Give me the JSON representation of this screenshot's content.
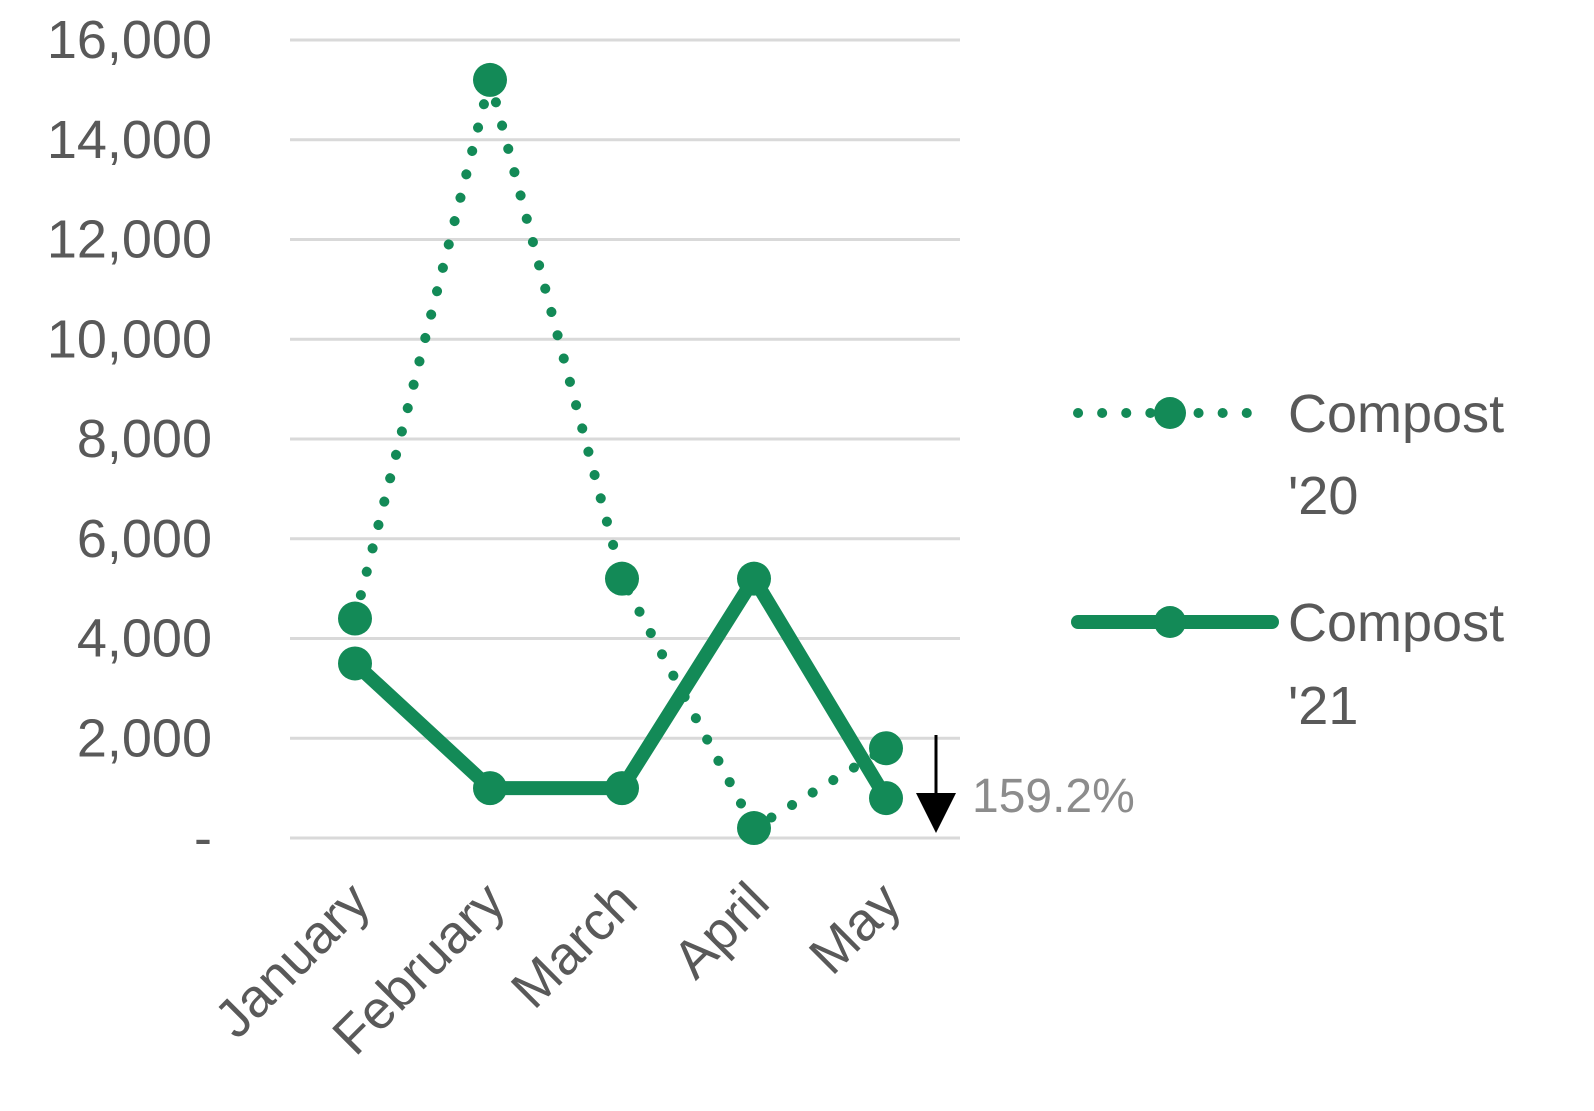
{
  "chart_data": {
    "type": "line",
    "categories": [
      "January",
      "February",
      "March",
      "April",
      "May"
    ],
    "series": [
      {
        "name": "Compost '20",
        "values": [
          4400,
          15200,
          5200,
          200,
          1800
        ],
        "style": "dotted",
        "color": "#138a57"
      },
      {
        "name": "Compost '21",
        "values": [
          3500,
          1000,
          1000,
          5200,
          800
        ],
        "style": "solid",
        "color": "#138a57"
      }
    ],
    "legend": {
      "position": "right",
      "entries": [
        {
          "line1": "Compost",
          "line2": "'20"
        },
        {
          "line1": "Compost",
          "line2": "'21"
        }
      ]
    },
    "y_tick_labels": [
      "-",
      "2,000",
      "4,000",
      "6,000",
      "8,000",
      "10,000",
      "12,000",
      "14,000",
      "16,000"
    ],
    "y_tick_values": [
      0,
      2000,
      4000,
      6000,
      8000,
      10000,
      12000,
      14000,
      16000
    ],
    "ylim": [
      0,
      16000
    ],
    "grid": true,
    "annotation": {
      "text": "159.2%",
      "direction": "down",
      "arrow_color": "#000000"
    }
  }
}
